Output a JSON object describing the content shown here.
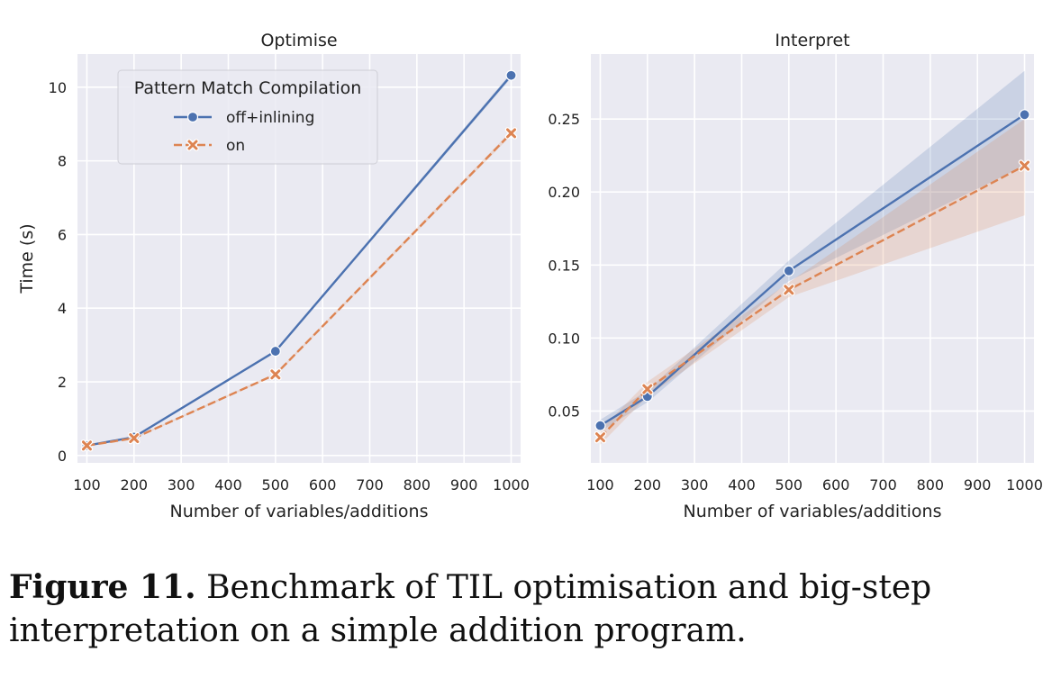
{
  "chart_data": [
    {
      "type": "line",
      "title": "Optimise",
      "xlabel": "Number of variables/additions",
      "ylabel": "Time (s)",
      "xlim": [
        80,
        1020
      ],
      "ylim": [
        -0.2,
        10.9
      ],
      "xticks": [
        100,
        200,
        300,
        400,
        500,
        600,
        700,
        800,
        900,
        1000
      ],
      "yticks": [
        0,
        2,
        4,
        6,
        8,
        10
      ],
      "legend": {
        "title": "Pattern Match Compilation",
        "position": "top-left",
        "entries": [
          "off+inlining",
          "on"
        ]
      },
      "series": [
        {
          "name": "off+inlining",
          "x": [
            100,
            200,
            500,
            1000
          ],
          "y": [
            0.27,
            0.5,
            2.83,
            10.32
          ],
          "ci_low": [
            0.25,
            0.48,
            2.8,
            10.25
          ],
          "ci_high": [
            0.29,
            0.52,
            2.86,
            10.39
          ],
          "color": "#4c72b0",
          "marker": "circle",
          "dash": "solid"
        },
        {
          "name": "on",
          "x": [
            100,
            200,
            500,
            1000
          ],
          "y": [
            0.27,
            0.47,
            2.2,
            8.75
          ],
          "ci_low": [
            0.25,
            0.45,
            2.17,
            8.69
          ],
          "ci_high": [
            0.29,
            0.49,
            2.23,
            8.81
          ],
          "color": "#dd8452",
          "marker": "x",
          "dash": "dashed"
        }
      ]
    },
    {
      "type": "line",
      "title": "Interpret",
      "xlabel": "Number of variables/additions",
      "ylabel": "",
      "xlim": [
        80,
        1020
      ],
      "ylim": [
        0.0145,
        0.2945
      ],
      "xticks": [
        100,
        200,
        300,
        400,
        500,
        600,
        700,
        800,
        900,
        1000
      ],
      "yticks": [
        0.05,
        0.1,
        0.15,
        0.2,
        0.25
      ],
      "ytick_labels": [
        "0.05",
        "0.10",
        "0.15",
        "0.20",
        "0.25"
      ],
      "series": [
        {
          "name": "off+inlining",
          "x": [
            100,
            200,
            500,
            1000
          ],
          "y": [
            0.04,
            0.06,
            0.146,
            0.253
          ],
          "ci_low": [
            0.036,
            0.056,
            0.139,
            0.218
          ],
          "ci_high": [
            0.044,
            0.064,
            0.153,
            0.283
          ],
          "color": "#4c72b0",
          "marker": "circle",
          "dash": "solid"
        },
        {
          "name": "on",
          "x": [
            100,
            200,
            500,
            1000
          ],
          "y": [
            0.032,
            0.065,
            0.133,
            0.218
          ],
          "ci_low": [
            0.027,
            0.06,
            0.128,
            0.184
          ],
          "ci_high": [
            0.037,
            0.07,
            0.138,
            0.25
          ],
          "color": "#dd8452",
          "marker": "x",
          "dash": "dashed"
        }
      ]
    }
  ],
  "caption": {
    "label": "Figure 11.",
    "text": " Benchmark of TIL optimisation and big-step interpretation on a simple addition program."
  }
}
